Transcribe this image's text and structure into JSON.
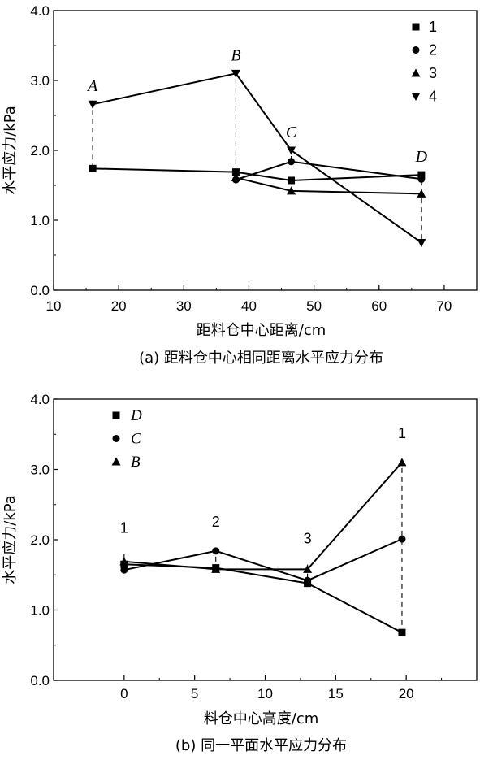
{
  "chart_data": [
    {
      "type": "line",
      "caption": "(a) 距料仓中心相同距离水平应力分布",
      "xlabel": "距料仓中心距离/cm",
      "ylabel": "水平应力/kPa",
      "xlim": [
        10,
        75
      ],
      "ylim": [
        0,
        4
      ],
      "xticks": [
        "10",
        "20",
        "30",
        "40",
        "50",
        "60",
        "70"
      ],
      "yticks": [
        "0.0",
        "1.0",
        "2.0",
        "3.0",
        "4.0"
      ],
      "legend_position": "top-right",
      "series": [
        {
          "name": "1",
          "marker": "square",
          "x": [
            16,
            38,
            46.5,
            66.5
          ],
          "y": [
            1.74,
            1.69,
            1.57,
            1.65
          ]
        },
        {
          "name": "2",
          "marker": "circle",
          "x": [
            38,
            46.5,
            66.5
          ],
          "y": [
            1.58,
            1.84,
            1.59
          ]
        },
        {
          "name": "3",
          "marker": "triangle-up",
          "x": [
            38,
            46.5,
            66.5
          ],
          "y": [
            1.61,
            1.42,
            1.38
          ]
        },
        {
          "name": "4",
          "marker": "triangle-down",
          "x": [
            16,
            38,
            46.5,
            66.5
          ],
          "y": [
            2.66,
            3.1,
            2.0,
            0.68
          ]
        }
      ],
      "annotations": [
        {
          "text": "A",
          "x": 16,
          "y_top": 2.66,
          "y_bottom": 1.74
        },
        {
          "text": "B",
          "x": 38,
          "y_top": 3.1,
          "y_bottom": 1.58
        },
        {
          "text": "C",
          "x": 46.5,
          "y_top": 2.0,
          "y_bottom": 1.84
        },
        {
          "text": "D",
          "x": 66.5,
          "y_top": 1.65,
          "y_bottom": 0.68
        }
      ]
    },
    {
      "type": "line",
      "caption": "(b) 同一平面水平应力分布",
      "xlabel": "料仓中心高度/cm",
      "ylabel": "水平应力/kPa",
      "xlim": [
        -5,
        25
      ],
      "ylim": [
        0,
        4
      ],
      "xticks": [
        "0",
        "5",
        "10",
        "15",
        "20"
      ],
      "yticks": [
        "0.0",
        "1.0",
        "2.0",
        "3.0",
        "4.0"
      ],
      "legend_position": "top-left",
      "series": [
        {
          "name": "D",
          "marker": "square",
          "x": [
            0,
            6.5,
            13,
            19.7
          ],
          "y": [
            1.65,
            1.6,
            1.38,
            0.68
          ]
        },
        {
          "name": "C",
          "marker": "circle",
          "x": [
            0,
            6.5,
            13,
            19.7
          ],
          "y": [
            1.57,
            1.84,
            1.42,
            2.01
          ]
        },
        {
          "name": "B",
          "marker": "triangle-up",
          "x": [
            0,
            6.5,
            13,
            19.7
          ],
          "y": [
            1.69,
            1.58,
            1.58,
            3.1
          ]
        }
      ],
      "annotations": [
        {
          "text": "1",
          "x": 0,
          "y_top": 1.75,
          "y_bottom": 1.69
        },
        {
          "text": "2",
          "x": 6.5,
          "y_top": 1.84,
          "y_bottom": 1.58
        },
        {
          "text": "3",
          "x": 13,
          "y_top": 1.6,
          "y_bottom": 1.38
        },
        {
          "text": "1",
          "x": 19.7,
          "y_top": 3.1,
          "y_bottom": 0.68
        }
      ]
    }
  ]
}
